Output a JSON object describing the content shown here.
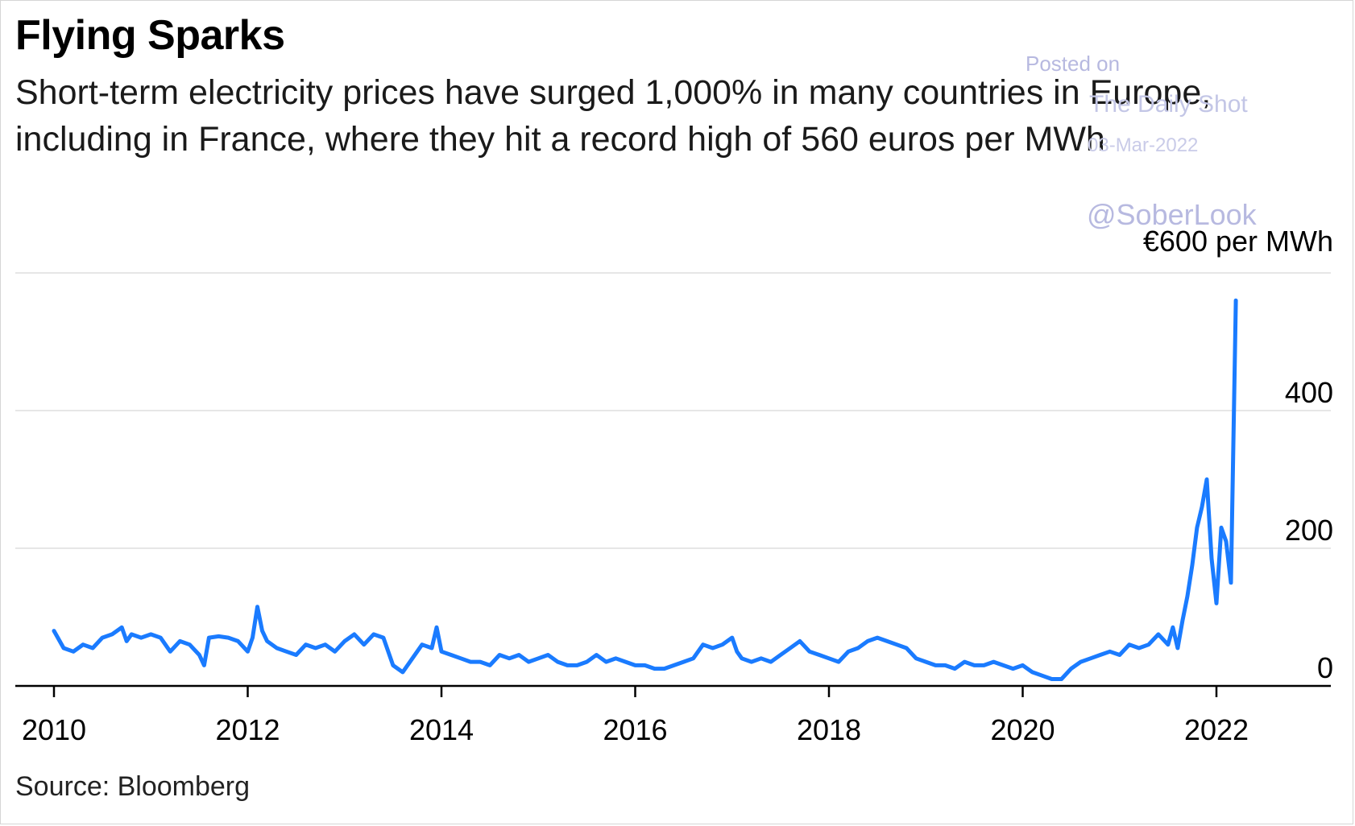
{
  "header": {
    "title": "Flying Sparks",
    "subtitle": "Short-term electricity prices have surged 1,000% in many countries in Europe, including in France, where they hit a record high of 560 euros per MWh"
  },
  "watermark": {
    "posted_on": "Posted on",
    "publication": "The Daily Shot",
    "date": "03-Mar-2022",
    "handle": "@SoberLook"
  },
  "footer": {
    "source": "Source: Bloomberg"
  },
  "colors": {
    "line": "#1a7bff",
    "grid": "#e6e6e6",
    "axis": "#000000",
    "watermark": "#b7b9e0"
  },
  "chart_data": {
    "type": "line",
    "title": "Flying Sparks",
    "subtitle": "Short-term electricity prices have surged 1,000% in many countries in Europe, including in France, where they hit a record high of 560 euros per MWh",
    "ylabel": "€600 per MWh",
    "xlim": [
      2010,
      2023.2
    ],
    "ylim": [
      -20,
      600
    ],
    "x_ticks": [
      2010,
      2012,
      2014,
      2016,
      2018,
      2020,
      2022
    ],
    "x_tick_labels": [
      "2010",
      "2012",
      "2014",
      "2016",
      "2018",
      "2020",
      "2022"
    ],
    "y_ticks": [
      0,
      200,
      400,
      600
    ],
    "y_tick_labels": [
      "0",
      "200",
      "400",
      "€600 per MWh"
    ],
    "grid": true,
    "legend": "none",
    "series": [
      {
        "x": [
          2010.0,
          2010.1,
          2010.2,
          2010.3,
          2010.4,
          2010.5,
          2010.6,
          2010.7,
          2010.75,
          2010.8,
          2010.9,
          2011.0,
          2011.1,
          2011.2,
          2011.3,
          2011.4,
          2011.5,
          2011.55,
          2011.6,
          2011.7,
          2011.8,
          2011.9,
          2012.0,
          2012.05,
          2012.1,
          2012.15,
          2012.2,
          2012.3,
          2012.4,
          2012.5,
          2012.6,
          2012.7,
          2012.8,
          2012.9,
          2013.0,
          2013.1,
          2013.2,
          2013.3,
          2013.4,
          2013.5,
          2013.6,
          2013.7,
          2013.8,
          2013.9,
          2013.95,
          2014.0,
          2014.1,
          2014.2,
          2014.3,
          2014.4,
          2014.5,
          2014.6,
          2014.7,
          2014.8,
          2014.9,
          2015.0,
          2015.1,
          2015.2,
          2015.3,
          2015.4,
          2015.5,
          2015.6,
          2015.7,
          2015.8,
          2015.9,
          2016.0,
          2016.1,
          2016.2,
          2016.3,
          2016.4,
          2016.5,
          2016.6,
          2016.7,
          2016.8,
          2016.9,
          2017.0,
          2017.05,
          2017.1,
          2017.2,
          2017.3,
          2017.4,
          2017.5,
          2017.6,
          2017.7,
          2017.8,
          2017.9,
          2018.0,
          2018.1,
          2018.2,
          2018.3,
          2018.4,
          2018.5,
          2018.6,
          2018.7,
          2018.8,
          2018.9,
          2019.0,
          2019.1,
          2019.2,
          2019.3,
          2019.4,
          2019.5,
          2019.6,
          2019.7,
          2019.8,
          2019.9,
          2020.0,
          2020.1,
          2020.2,
          2020.3,
          2020.4,
          2020.5,
          2020.6,
          2020.7,
          2020.8,
          2020.9,
          2021.0,
          2021.1,
          2021.2,
          2021.3,
          2021.4,
          2021.5,
          2021.55,
          2021.6,
          2021.65,
          2021.7,
          2021.75,
          2021.8,
          2021.85,
          2021.9,
          2021.95,
          2022.0,
          2022.05,
          2022.1,
          2022.15,
          2022.2
        ],
        "y": [
          80,
          55,
          50,
          60,
          55,
          70,
          75,
          85,
          65,
          75,
          70,
          75,
          70,
          50,
          65,
          60,
          45,
          30,
          70,
          72,
          70,
          65,
          50,
          70,
          115,
          80,
          65,
          55,
          50,
          45,
          60,
          55,
          60,
          50,
          65,
          75,
          60,
          75,
          70,
          30,
          20,
          40,
          60,
          55,
          85,
          50,
          45,
          40,
          35,
          35,
          30,
          45,
          40,
          45,
          35,
          40,
          45,
          35,
          30,
          30,
          35,
          45,
          35,
          40,
          35,
          30,
          30,
          25,
          25,
          30,
          35,
          40,
          60,
          55,
          60,
          70,
          50,
          40,
          35,
          40,
          35,
          45,
          55,
          65,
          50,
          45,
          40,
          35,
          50,
          55,
          65,
          70,
          65,
          60,
          55,
          40,
          35,
          30,
          30,
          25,
          35,
          30,
          30,
          35,
          30,
          25,
          30,
          20,
          15,
          10,
          10,
          25,
          35,
          40,
          45,
          50,
          45,
          60,
          55,
          60,
          75,
          60,
          85,
          55,
          95,
          130,
          175,
          230,
          260,
          300,
          185,
          120,
          230,
          210,
          150,
          560
        ]
      }
    ]
  }
}
